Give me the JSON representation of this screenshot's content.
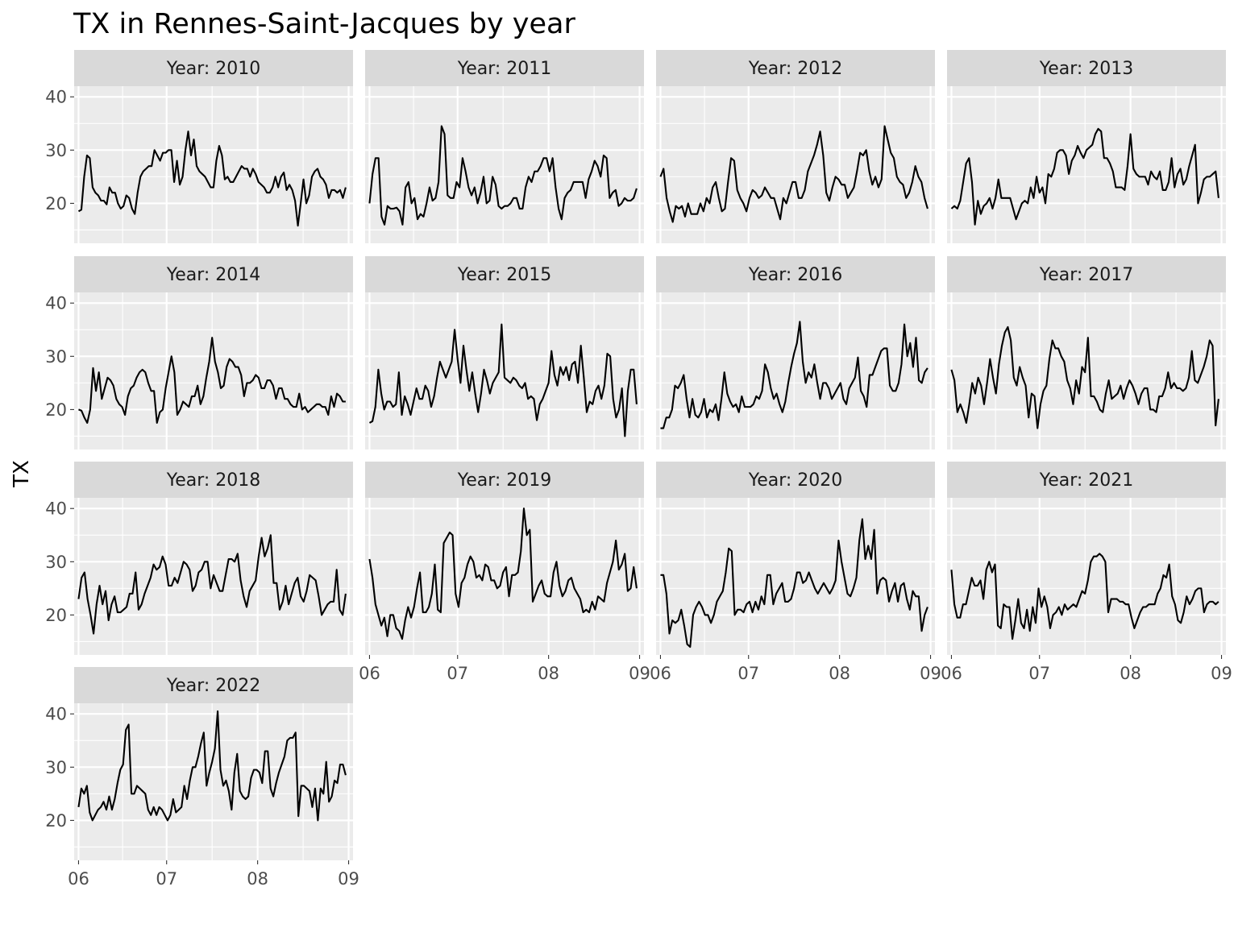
{
  "chart_data": {
    "type": "line",
    "title": "TX in Rennes-Saint-Jacques by year",
    "xlabel": "",
    "ylabel": "TX",
    "facet_label_prefix": "Year: ",
    "x_domain": [
      "06-01",
      "08-31"
    ],
    "x_ticks": [
      "06",
      "07",
      "08",
      "09"
    ],
    "y_ticks": [
      20,
      30,
      40
    ],
    "ylim": [
      12.5,
      42
    ],
    "grid": true,
    "legend": "none",
    "colors": {
      "panel_bg": "#ebebeb",
      "strip_bg": "#d9d9d9",
      "grid": "#ffffff",
      "line": "#000000",
      "tick_text": "#4d4d4d"
    },
    "panels": [
      {
        "year": "2010",
        "values": [
          18.5,
          18.8,
          25,
          29,
          28.5,
          23,
          22,
          21.5,
          20.5,
          20.5,
          19.8,
          23,
          22,
          22,
          20,
          19,
          19.5,
          21.5,
          21,
          19,
          18,
          22,
          25,
          26,
          26.5,
          27,
          27,
          30,
          29,
          28,
          29.5,
          29.5,
          30,
          30,
          24,
          28,
          23.5,
          25,
          30,
          33.5,
          29,
          32,
          27,
          26,
          25.5,
          25,
          24,
          23,
          23,
          28,
          30.8,
          29,
          24.5,
          25,
          24,
          24,
          25,
          26,
          27,
          26.5,
          26.5,
          25,
          26.5,
          25.5,
          24,
          23.5,
          23,
          22,
          22,
          23,
          25,
          23,
          25,
          25.8,
          22.5,
          23.5,
          22.5,
          20.5,
          15.8,
          20,
          24.5,
          20,
          21.5,
          25,
          26,
          26.5,
          25,
          24.5,
          23.5,
          21,
          22.5,
          22.5,
          22,
          22.5,
          21,
          23
        ]
      },
      {
        "year": "2011",
        "values": [
          20,
          25.5,
          28.5,
          28.5,
          17.5,
          16,
          19.5,
          19,
          19,
          19.2,
          18.5,
          16,
          23,
          24,
          20,
          21,
          17,
          18,
          17.5,
          20,
          23,
          20.5,
          21,
          24,
          34.5,
          33,
          21.5,
          21,
          21,
          24,
          23,
          28.5,
          26,
          23,
          21.5,
          23,
          20,
          22,
          25,
          20,
          20.5,
          25,
          23.5,
          19.5,
          19,
          19.5,
          19.5,
          20,
          21,
          21,
          19,
          19,
          23,
          25,
          24,
          26,
          26,
          27,
          28.5,
          28.5,
          26,
          28.5,
          23,
          19,
          17,
          21,
          22,
          22.5,
          24,
          24,
          24,
          24,
          21,
          24.5,
          26,
          28,
          27,
          25,
          29,
          28.5,
          21,
          22,
          22.5,
          19.5,
          20,
          21,
          20.5,
          20.5,
          21,
          22.8
        ]
      },
      {
        "year": "2012",
        "values": [
          25,
          26.5,
          21,
          18.5,
          16.5,
          19.5,
          19,
          19.5,
          17.5,
          20,
          18,
          18,
          18,
          20,
          18.5,
          21,
          20,
          23,
          24,
          21,
          18.5,
          19,
          24,
          28.5,
          28,
          22.5,
          21,
          20,
          18.5,
          21,
          22.5,
          22,
          21,
          21.5,
          23,
          22,
          21,
          21,
          19,
          17,
          21,
          20,
          22,
          24,
          24,
          21,
          21,
          22.5,
          26,
          27.5,
          29,
          31,
          33.5,
          29,
          22,
          20.5,
          23,
          25,
          24.5,
          23.5,
          23.5,
          21,
          22,
          23,
          26,
          29.5,
          29,
          30,
          26,
          23.5,
          25,
          23,
          24.5,
          34.5,
          32,
          29.5,
          28.5,
          25,
          24,
          23.5,
          21,
          22,
          24,
          27,
          25,
          24,
          21,
          19
        ]
      },
      {
        "year": "2013",
        "values": [
          19,
          19.5,
          19,
          20.5,
          24,
          27.5,
          28.5,
          24,
          16,
          20.5,
          18,
          19.5,
          20,
          21,
          19,
          21,
          24.5,
          21,
          21,
          21,
          21,
          19,
          17,
          18.5,
          20,
          20.5,
          20,
          23,
          21,
          25,
          22,
          23,
          20,
          25.5,
          25,
          26.5,
          29.5,
          30,
          30,
          29,
          25.5,
          28,
          29,
          30.8,
          29.5,
          28.5,
          30,
          30.5,
          31,
          33,
          34,
          33.5,
          28.5,
          28.5,
          27.5,
          26,
          23,
          23,
          23,
          22.5,
          27,
          33,
          26.5,
          25.5,
          25,
          25,
          25,
          23.5,
          26,
          25,
          24.5,
          26,
          22.5,
          22.5,
          24,
          28.5,
          23,
          25.5,
          26.5,
          23.5,
          24.5,
          27,
          29,
          31,
          20,
          22,
          24.5,
          25,
          25,
          25.5,
          26,
          21
        ]
      },
      {
        "year": "2014",
        "values": [
          20,
          19.8,
          18.5,
          17.5,
          20,
          27.8,
          23.5,
          27,
          22,
          24,
          26,
          25.5,
          24.5,
          22,
          21,
          20.5,
          19,
          22.5,
          24,
          24.5,
          26,
          27,
          27.5,
          27,
          25,
          23.5,
          23.5,
          17.5,
          19.5,
          20,
          24,
          27,
          30,
          27,
          19,
          20,
          21.5,
          21,
          20.5,
          22.5,
          22.5,
          24.5,
          21,
          22.5,
          26,
          29,
          33.5,
          29,
          27,
          24,
          24.5,
          28,
          29.5,
          29,
          28,
          28,
          26.5,
          22.5,
          25,
          25,
          25.5,
          26.5,
          26,
          24,
          24,
          25.5,
          25.5,
          24.5,
          22,
          24,
          24,
          22,
          22,
          21,
          20.5,
          20.5,
          23,
          20,
          20.5,
          19.5,
          20,
          20.5,
          21,
          21,
          20.5,
          20.5,
          19,
          22.5,
          20.5,
          23,
          22.5,
          21.5,
          21.5
        ]
      },
      {
        "year": "2015",
        "values": [
          17.5,
          17.8,
          20.5,
          27.5,
          23,
          20,
          21.5,
          21.5,
          20.5,
          21,
          27,
          19,
          22.5,
          21,
          19,
          21.5,
          24,
          22,
          22,
          24.5,
          23.5,
          20.5,
          22.5,
          26,
          29,
          27.5,
          26,
          27.5,
          29,
          35,
          29.5,
          25,
          32,
          27.5,
          23.5,
          27,
          23,
          19.5,
          23,
          27.5,
          25.5,
          23,
          25,
          26,
          27,
          36,
          26,
          25.5,
          25,
          26,
          25.5,
          24.5,
          24,
          25,
          22,
          22.5,
          22,
          18,
          21,
          22,
          23.5,
          25,
          31,
          26.5,
          24.5,
          28,
          26.5,
          28,
          25.5,
          28.5,
          29,
          25,
          32,
          26,
          19.5,
          21.5,
          21,
          23.5,
          24.5,
          22,
          24.5,
          30.5,
          30,
          22,
          18.5,
          20,
          24,
          15,
          23.5,
          27.5,
          27.5,
          21
        ]
      },
      {
        "year": "2016",
        "values": [
          16.5,
          16.5,
          18.5,
          18.5,
          20,
          24.5,
          24,
          25,
          26.5,
          22,
          18.5,
          22,
          19,
          18.5,
          19.5,
          22,
          18.5,
          20,
          19.5,
          21,
          18,
          22,
          27,
          23,
          21.5,
          20.5,
          21,
          19.5,
          22.5,
          20.5,
          20.5,
          20.5,
          21,
          22.5,
          22,
          23.5,
          28.5,
          27,
          24,
          22,
          23,
          21,
          19.5,
          21.5,
          25,
          28,
          30.5,
          32.5,
          36.5,
          29,
          25,
          27,
          26,
          28.5,
          25,
          22,
          25,
          25,
          24,
          22,
          23,
          24,
          25,
          22,
          21,
          24,
          25,
          26,
          29.8,
          23.5,
          22.5,
          20.5,
          26.5,
          26.5,
          28,
          29.5,
          31,
          31.5,
          31.5,
          24.5,
          23.5,
          23.5,
          25,
          28.5,
          36,
          30,
          32.5,
          28,
          33.5,
          25.5,
          25,
          27,
          27.8
        ]
      },
      {
        "year": "2017",
        "values": [
          27.5,
          25.5,
          19.5,
          21,
          19.5,
          17.5,
          21,
          25,
          23,
          26,
          24.5,
          21,
          25,
          29.5,
          26,
          23,
          28.5,
          32,
          34.5,
          35.5,
          33,
          26,
          24.5,
          28,
          26,
          24.5,
          18.5,
          23,
          22.5,
          16.5,
          21,
          23.5,
          24.5,
          29.5,
          33,
          31.5,
          31.5,
          30,
          29,
          25.5,
          24,
          21,
          25.5,
          23,
          28,
          27,
          33.5,
          22.5,
          22.5,
          21.5,
          20,
          19.5,
          23,
          25.5,
          22,
          22.5,
          23,
          24.5,
          22,
          24,
          25.5,
          24.5,
          23,
          21,
          23,
          24,
          24,
          20,
          20,
          19.5,
          22.5,
          22.5,
          24,
          27,
          24,
          25,
          24,
          24,
          23.5,
          24,
          26,
          31,
          25.5,
          25,
          26.5,
          28,
          30,
          33,
          32,
          17,
          22
        ]
      },
      {
        "year": "2018",
        "values": [
          23,
          27,
          28,
          23,
          20,
          16.5,
          22,
          25.5,
          22,
          24.5,
          19,
          22,
          23.5,
          20.5,
          20.5,
          21,
          21.5,
          24,
          24,
          28,
          21,
          22,
          24,
          25.5,
          27,
          29.5,
          28.5,
          29,
          31,
          29.5,
          25.5,
          25.5,
          27,
          26,
          28,
          30,
          29.5,
          28.5,
          24.5,
          25.5,
          28,
          28.5,
          30,
          30,
          25,
          27.5,
          26,
          24.5,
          24.5,
          27.5,
          30.5,
          30.5,
          30,
          31.5,
          26.5,
          23.5,
          21.5,
          24.5,
          25.5,
          26.5,
          31,
          34.5,
          31,
          32.5,
          35,
          26,
          26,
          21,
          22.5,
          25.5,
          22,
          24,
          26,
          27,
          23.5,
          22.5,
          24.5,
          27.5,
          27,
          26.5,
          23.5,
          20,
          21,
          22,
          22.5,
          22.5,
          28.5,
          21,
          20,
          24
        ]
      },
      {
        "year": "2019",
        "values": [
          30.5,
          27,
          22,
          20,
          18,
          19.5,
          16,
          20,
          20,
          17.5,
          17,
          15.5,
          19,
          21.5,
          19.5,
          21.5,
          25,
          28,
          20.5,
          20.5,
          21.5,
          24,
          29.5,
          21,
          20.5,
          33.5,
          34.5,
          35.5,
          35,
          24,
          21.5,
          26,
          27,
          29.5,
          31,
          30,
          27,
          27.5,
          26.5,
          29.5,
          29,
          26.5,
          26.5,
          25,
          25.5,
          28,
          29,
          23.5,
          27.5,
          27.5,
          28,
          32,
          40,
          35,
          36,
          22.5,
          24,
          25.5,
          26.5,
          24,
          23.5,
          23.5,
          28,
          30,
          25.5,
          23.5,
          24.5,
          26.5,
          27,
          25,
          24,
          23,
          20.5,
          21,
          20.5,
          22.5,
          21,
          23.5,
          23,
          22.5,
          26,
          28,
          30,
          34,
          28.5,
          29.5,
          31.5,
          24.5,
          25,
          29,
          25
        ]
      },
      {
        "year": "2020",
        "values": [
          27.5,
          27.5,
          24,
          16.5,
          19,
          18.5,
          19,
          21,
          18,
          14.5,
          14,
          20,
          21.5,
          22.5,
          21.5,
          20,
          20,
          18.5,
          20,
          22.5,
          23.5,
          24.5,
          28,
          32.5,
          32,
          20,
          21,
          21,
          20.5,
          22,
          22.5,
          20.5,
          22.5,
          21,
          23.5,
          22,
          27.5,
          27.5,
          22,
          24,
          25,
          26,
          22.5,
          22.5,
          23,
          25,
          28,
          28,
          26,
          26.5,
          28,
          26.5,
          25,
          24,
          25,
          26,
          25,
          24,
          25,
          26.5,
          34,
          30,
          27,
          24,
          23.5,
          25,
          27,
          34,
          38,
          30.5,
          33,
          30.5,
          36,
          24,
          26.5,
          27,
          26.5,
          22.5,
          24.5,
          26,
          22.5,
          25.5,
          26,
          23,
          21,
          24.5,
          23.5,
          23.5,
          17,
          20,
          21.5
        ]
      },
      {
        "year": "2021",
        "values": [
          28.5,
          22,
          19.5,
          19.5,
          22,
          22,
          24.5,
          27,
          25.5,
          25.5,
          26.5,
          23,
          28.5,
          30,
          28,
          29.5,
          18,
          17.5,
          22,
          21.5,
          21.5,
          15.5,
          19,
          23,
          18.5,
          17.5,
          21,
          17,
          21.5,
          18.5,
          25,
          21.5,
          23.5,
          21.5,
          17.5,
          20,
          20.5,
          21.5,
          20,
          22,
          21,
          21.5,
          22,
          21.5,
          23,
          24.5,
          24,
          26.5,
          30,
          31,
          31,
          31.5,
          31,
          30,
          20.5,
          23,
          23,
          23,
          22.5,
          22.5,
          22,
          22,
          19.5,
          17.5,
          19,
          20.5,
          21.5,
          21.5,
          22,
          22,
          22,
          24,
          25,
          27.5,
          27,
          29.5,
          23.5,
          22,
          19,
          18.5,
          20.5,
          23.5,
          22,
          23,
          24.5,
          25,
          25,
          20.5,
          22,
          22.5,
          22.5,
          22,
          22.5
        ]
      },
      {
        "year": "2022",
        "values": [
          22.5,
          26,
          25,
          26.5,
          21.5,
          20,
          21,
          22,
          22.5,
          23.5,
          22,
          24.5,
          22,
          24,
          27,
          29.5,
          30.5,
          37,
          38,
          25,
          25,
          26.5,
          26,
          25.5,
          25,
          22,
          21,
          22.5,
          21,
          22.5,
          22,
          21,
          20,
          21,
          24,
          21.5,
          22,
          22.5,
          26.5,
          24,
          27.5,
          30,
          30,
          32,
          34.5,
          36.5,
          26.5,
          29,
          31,
          33.5,
          40.5,
          29.5,
          26.5,
          27.5,
          25.5,
          22,
          29,
          32.5,
          25.5,
          24.5,
          24,
          24.5,
          28,
          29.5,
          29.5,
          29,
          27,
          33,
          33,
          26,
          24.5,
          27,
          29,
          30.5,
          32,
          35,
          35.5,
          35.5,
          36.5,
          20.8,
          26.5,
          26.5,
          26,
          25.5,
          22.5,
          26,
          20,
          26,
          25,
          31,
          23.5,
          24.5,
          27.5,
          27,
          30.5,
          30.5,
          28.5
        ]
      }
    ]
  }
}
